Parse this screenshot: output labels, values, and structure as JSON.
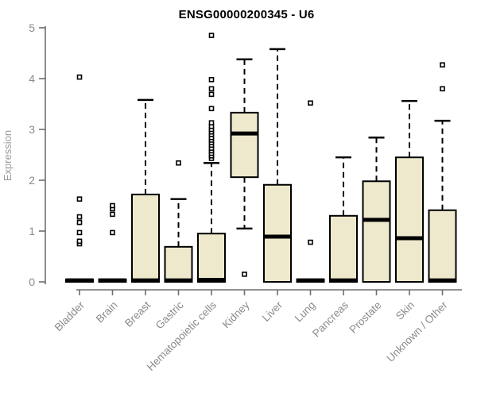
{
  "title": "ENSG00000200345 - U6",
  "colors": {
    "box_fill": "#EEE8CD",
    "box_stroke": "#000000",
    "median": "#000000",
    "whisker": "#000000",
    "outlier_stroke": "#000000",
    "axis_line": "#6e6e6e",
    "tick_text": "#8b8b8b",
    "axis_label_text": "#9a9a9a",
    "title_text": "#000000",
    "background": "#ffffff"
  },
  "chart_data": {
    "type": "boxplot",
    "title": "ENSG00000200345 - U6",
    "xlabel": "",
    "ylabel": "Expression",
    "ylim": [
      0,
      5
    ],
    "yticks": [
      0,
      1,
      2,
      3,
      4,
      5
    ],
    "grid": false,
    "legend": "none",
    "categories": [
      "Bladder",
      "Brain",
      "Breast",
      "Gastric",
      "Hematopoietic cells",
      "Kidney",
      "Liver",
      "Lung",
      "Pancreas",
      "Prostate",
      "Skin",
      "Unknown / Other"
    ],
    "series": [
      {
        "name": "Bladder",
        "whisker_low": 0,
        "q1": 0,
        "median": 0.03,
        "q3": 0.05,
        "whisker_high": 0.05,
        "outliers": [
          0.75,
          0.8,
          0.97,
          1.17,
          1.28,
          1.63,
          4.03
        ]
      },
      {
        "name": "Brain",
        "whisker_low": 0,
        "q1": 0,
        "median": 0.03,
        "q3": 0.05,
        "whisker_high": 0.05,
        "outliers": [
          0.97,
          1.33,
          1.44,
          1.5
        ]
      },
      {
        "name": "Breast",
        "whisker_low": 0,
        "q1": 0,
        "median": 0.03,
        "q3": 1.72,
        "whisker_high": 3.58,
        "outliers": []
      },
      {
        "name": "Gastric",
        "whisker_low": 0,
        "q1": 0,
        "median": 0.03,
        "q3": 0.69,
        "whisker_high": 1.63,
        "outliers": [
          2.34
        ]
      },
      {
        "name": "Hematopoietic cells",
        "whisker_low": 0,
        "q1": 0,
        "median": 0.04,
        "q3": 0.95,
        "whisker_high": 2.34,
        "outliers": [
          2.43,
          2.48,
          2.53,
          2.58,
          2.63,
          2.69,
          2.74,
          2.79,
          2.84,
          2.9,
          2.95,
          3.0,
          3.06,
          3.13,
          3.41,
          3.69,
          3.8,
          3.98,
          4.85
        ]
      },
      {
        "name": "Kidney",
        "whisker_low": 1.05,
        "q1": 2.06,
        "median": 2.92,
        "q3": 3.33,
        "whisker_high": 4.38,
        "outliers": [
          0.15
        ]
      },
      {
        "name": "Liver",
        "whisker_low": 0,
        "q1": 0,
        "median": 0.89,
        "q3": 1.91,
        "whisker_high": 4.58,
        "outliers": []
      },
      {
        "name": "Lung",
        "whisker_low": 0,
        "q1": 0,
        "median": 0.03,
        "q3": 0.05,
        "whisker_high": 0.05,
        "outliers": [
          0.78,
          3.52
        ]
      },
      {
        "name": "Pancreas",
        "whisker_low": 0,
        "q1": 0,
        "median": 0.03,
        "q3": 1.3,
        "whisker_high": 2.45,
        "outliers": []
      },
      {
        "name": "Prostate",
        "whisker_low": 0,
        "q1": 0,
        "median": 1.22,
        "q3": 1.98,
        "whisker_high": 2.84,
        "outliers": []
      },
      {
        "name": "Skin",
        "whisker_low": 0,
        "q1": 0,
        "median": 0.86,
        "q3": 2.45,
        "whisker_high": 3.56,
        "outliers": []
      },
      {
        "name": "Unknown / Other",
        "whisker_low": 0,
        "q1": 0,
        "median": 0.03,
        "q3": 1.41,
        "whisker_high": 3.17,
        "outliers": [
          3.8,
          4.27
        ]
      }
    ]
  }
}
